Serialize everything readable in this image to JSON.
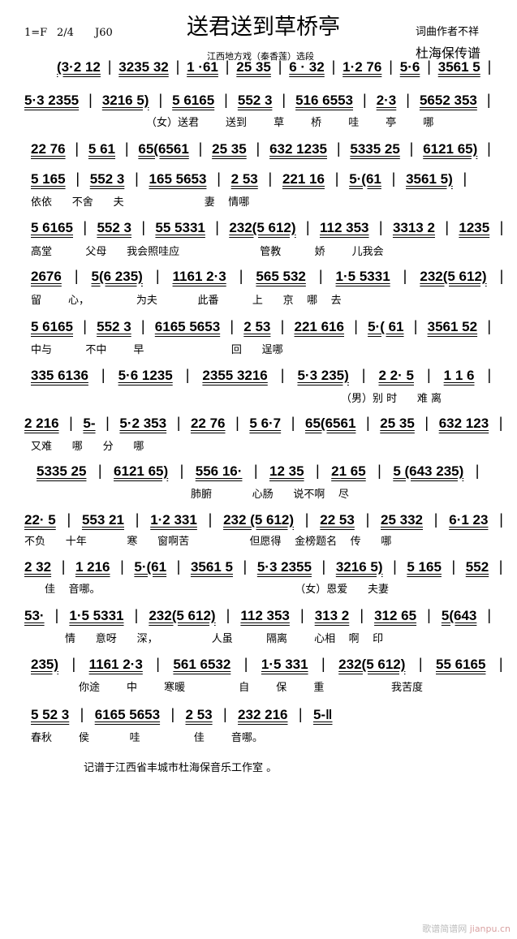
{
  "header": {
    "key": "1=F",
    "meter": "2/4",
    "tempo": "J60",
    "title": "送君送到草桥亭",
    "subtitle": "江西地方戏（秦香莲）选段",
    "authors": "词曲作者不祥",
    "transcriber": "杜海保传谱"
  },
  "rows": [
    {
      "measures": [
        "(3·2 12",
        "3235 32",
        "1 ·61",
        "25 35",
        "6 · 32",
        "1·2 76",
        "5·6",
        "3561 5"
      ],
      "lyric": ""
    },
    {
      "measures": [
        "5·3 2355",
        "3216 5)",
        "5 6165",
        "552 3",
        "516 6553",
        "2·3",
        "5652 353"
      ],
      "lyric": "（女）送君        送到        草        桥        哇        亭        哪"
    },
    {
      "measures": [
        "22 76",
        "5 61",
        "65(6561",
        "25 35",
        "632 1235",
        "5335 25",
        "6121 65)"
      ],
      "lyric": ""
    },
    {
      "measures": [
        "5 165",
        "552 3",
        "165 5653",
        "2 53",
        "221 16",
        "5·(61",
        "3561 5)"
      ],
      "lyric": "依依      不舍      夫                        妻    情哪"
    },
    {
      "measures": [
        "5 6165",
        "552 3",
        "55 5331",
        "232(5 612)",
        "112 353",
        "3313 2",
        "1235"
      ],
      "lyric": "高堂          父母      我会照哇应                        管教          娇        儿我会"
    },
    {
      "measures": [
        "2676",
        "5(6 235)",
        "1161 2·3",
        "565 532",
        "1·5 5331",
        "232(5 612)"
      ],
      "lyric": "留        心，              为夫            此番          上      京    哪    去"
    },
    {
      "measures": [
        "5 6165",
        "552 3",
        "6165 5653",
        "2 53",
        "221 616",
        "5·( 61",
        "3561 52"
      ],
      "lyric": "中与          不中        早                          回      逞哪"
    },
    {
      "measures": [
        "335 6136",
        "5·6 1235",
        "2355 3216",
        "5·3 235)",
        "2 2· 5",
        "1 1 6"
      ],
      "lyric": "（男）别 时      难 离"
    },
    {
      "measures": [
        "2 216",
        "5-",
        "5·2 353",
        "22 76",
        "5 6·7",
        "65(6561",
        "25 35",
        "632 123"
      ],
      "lyric": "又难      哪      分      哪"
    },
    {
      "measures": [
        "5335 25",
        "6121 65)",
        "556 16·",
        "12 35",
        "21 65",
        "5 (643 235)"
      ],
      "lyric": "肺腑            心肠      说不啊    尽"
    },
    {
      "measures": [
        "22· 5",
        "553 21",
        "1·2 331",
        "232 (5 612)",
        "22 53",
        "25 332",
        "6·1 23"
      ],
      "lyric": "不负      十年            寒      窗啊苦                  但愿得    金榜题名    传      哪"
    },
    {
      "measures": [
        "2 32",
        "1 216",
        "5·(61",
        "3561 5",
        "5·3 2355",
        "3216 5)",
        "5 165",
        "552"
      ],
      "lyric": "佳    音哪。                                                          （女）恩爱      夫妻"
    },
    {
      "measures": [
        "53·",
        "1·5 5331",
        "232(5 612)",
        "112 353",
        "313 2",
        "312 65",
        "5(643"
      ],
      "lyric": "情      意呀      深，                人虽          隔离        心相    啊    印"
    },
    {
      "measures": [
        "235)",
        "1161 2·3",
        "561 6532",
        "1·5 331",
        "232(5 612)",
        "55 6165"
      ],
      "lyric": "你途        中        寒暖                自        保        重                    我苦度"
    },
    {
      "measures": [
        "5 52 3",
        "6165 5653",
        "2 53",
        "232 216",
        "5-‖"
      ],
      "lyric": "春秋        侯            哇                佳        音哪。"
    }
  ],
  "footer": "记谱于江西省丰城市杜海保音乐工作室 。",
  "watermark": {
    "site": "歌谱简谱网",
    "url": "jianpu.cn"
  }
}
